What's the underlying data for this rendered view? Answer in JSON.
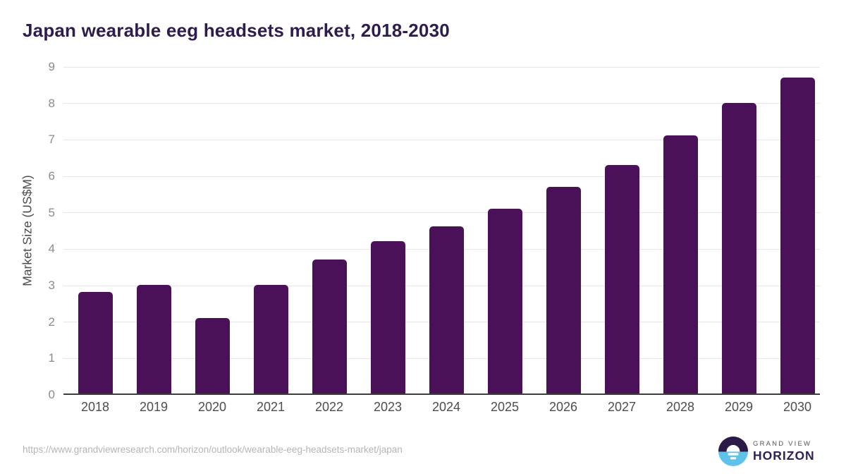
{
  "chart_data": {
    "type": "bar",
    "title": "Japan wearable eeg headsets market, 2018-2030",
    "xlabel": "",
    "ylabel": "Market Size (US$M)",
    "categories": [
      "2018",
      "2019",
      "2020",
      "2021",
      "2022",
      "2023",
      "2024",
      "2025",
      "2026",
      "2027",
      "2028",
      "2029",
      "2030"
    ],
    "values": [
      2.8,
      3.0,
      2.1,
      3.0,
      3.7,
      4.2,
      4.6,
      5.1,
      5.7,
      6.3,
      7.1,
      8.0,
      8.7
    ],
    "ylim": [
      0,
      9
    ],
    "yticks": [
      "0",
      "1",
      "2",
      "3",
      "4",
      "5",
      "6",
      "7",
      "8",
      "9"
    ],
    "grid": true,
    "legend": "none",
    "bar_color": "#4a1158"
  },
  "footer": {
    "source_url": "https://www.grandviewresearch.com/horizon/outlook/wearable-eeg-headsets-market/japan",
    "logo": {
      "top_text": "GRAND VIEW",
      "bottom_text": "HORIZON",
      "icon_dark_color": "#2c1a46",
      "icon_blue_color": "#5fc3e9"
    }
  },
  "colors": {
    "title": "#2f1c4f",
    "bar": "#4a1158",
    "gridline": "#e7e7e7",
    "axis_line": "#3d3d3d",
    "y_tick": "#8b8b8b",
    "x_tick": "#4d4d4d",
    "axis_title": "#4c4c4c",
    "source_url": "#b5b5b5"
  }
}
